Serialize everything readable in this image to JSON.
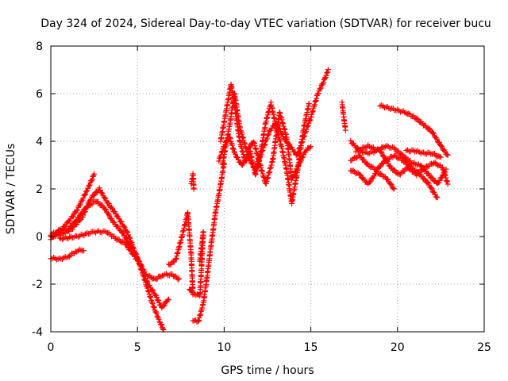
{
  "chart_data": {
    "type": "scatter",
    "title": "Day 324 of 2024, Sidereal Day-to-day VTEC variation (SDTVAR) for receiver bucu",
    "xlabel": "GPS time / hours",
    "ylabel": "SDTVAR / TECUs",
    "xlim": [
      0,
      25
    ],
    "ylim": [
      -4,
      8
    ],
    "xticks": [
      "0",
      "5",
      "10",
      "15",
      "20",
      "25"
    ],
    "yticks": [
      "-4",
      "-2",
      "0",
      "2",
      "4",
      "6",
      "8"
    ],
    "grid": true,
    "marker": "plus",
    "color": "#ff0000",
    "series": [
      {
        "points": [
          [
            0,
            -0.9
          ],
          [
            0.5,
            -0.95
          ],
          [
            1,
            -0.85
          ],
          [
            1.5,
            -0.6
          ],
          [
            1.9,
            -0.55
          ]
        ]
      },
      {
        "points": [
          [
            0,
            0.1
          ],
          [
            0.5,
            0.2
          ],
          [
            1,
            0.6
          ],
          [
            1.5,
            1.1
          ],
          [
            2,
            1.8
          ],
          [
            2.5,
            2.6
          ]
        ]
      },
      {
        "points": [
          [
            0,
            -0.1
          ],
          [
            0.5,
            0.3
          ],
          [
            1,
            0.3
          ],
          [
            1.5,
            0.7
          ],
          [
            2,
            1.2
          ],
          [
            2.6,
            1.5
          ],
          [
            3.1,
            1.2
          ],
          [
            3.6,
            0.6
          ],
          [
            4.1,
            0.2
          ],
          [
            4.6,
            -0.4
          ],
          [
            5.2,
            -1.2
          ],
          [
            5.6,
            -2.0
          ],
          [
            6.0,
            -2.4
          ],
          [
            6.4,
            -3.0
          ],
          [
            6.8,
            -2.6
          ]
        ]
      },
      {
        "points": [
          [
            0,
            0.0
          ],
          [
            0.6,
            0.1
          ],
          [
            1.2,
            0.3
          ],
          [
            1.8,
            0.8
          ],
          [
            2.3,
            1.6
          ],
          [
            2.8,
            2.0
          ],
          [
            3.2,
            1.5
          ],
          [
            3.8,
            0.9
          ],
          [
            4.4,
            0.2
          ],
          [
            5.0,
            -0.9
          ],
          [
            5.5,
            -2.0
          ],
          [
            5.9,
            -2.9
          ],
          [
            6.3,
            -3.6
          ],
          [
            6.5,
            -3.9
          ]
        ]
      },
      {
        "points": [
          [
            0.5,
            -0.1
          ],
          [
            1.5,
            0.0
          ],
          [
            2.5,
            0.2
          ],
          [
            3.2,
            0.2
          ],
          [
            3.8,
            -0.1
          ],
          [
            4.3,
            -0.3
          ],
          [
            5.0,
            -1.0
          ],
          [
            5.5,
            -1.6
          ],
          [
            6.0,
            -1.8
          ],
          [
            6.5,
            -1.6
          ],
          [
            7.0,
            -1.6
          ],
          [
            7.4,
            -1.8
          ]
        ]
      },
      {
        "points": [
          [
            6.8,
            -1.2
          ],
          [
            7.2,
            -1.0
          ],
          [
            7.6,
            0.1
          ],
          [
            7.9,
            1.0
          ],
          [
            8.1,
            -0.8
          ],
          [
            8.2,
            -2.4
          ],
          [
            8.0,
            -2.2
          ]
        ]
      },
      {
        "points": [
          [
            8.1,
            2.2
          ],
          [
            8.2,
            2.6
          ],
          [
            8.25,
            2.0
          ]
        ]
      },
      {
        "points": [
          [
            8.3,
            -2.4
          ],
          [
            8.6,
            -2.5
          ],
          [
            8.7,
            -1.2
          ],
          [
            8.8,
            0.2
          ],
          [
            8.6,
            -1.0
          ]
        ]
      },
      {
        "points": [
          [
            8.2,
            -3.5
          ],
          [
            8.5,
            -3.6
          ],
          [
            8.8,
            -2.8
          ],
          [
            9.0,
            -1.8
          ],
          [
            9.2,
            -0.6
          ],
          [
            9.5,
            1.0
          ],
          [
            9.8,
            2.2
          ],
          [
            10.0,
            3.1
          ]
        ]
      },
      {
        "points": [
          [
            9.7,
            3.2
          ],
          [
            10.0,
            3.8
          ],
          [
            10.3,
            4.2
          ],
          [
            10.6,
            3.5
          ],
          [
            11.0,
            3.0
          ],
          [
            11.4,
            3.3
          ],
          [
            11.8,
            2.8
          ],
          [
            12.2,
            3.6
          ],
          [
            12.6,
            4.4
          ],
          [
            13.0,
            4.8
          ],
          [
            13.4,
            4.2
          ],
          [
            13.8,
            3.8
          ],
          [
            14.2,
            3.4
          ],
          [
            14.6,
            4.2
          ],
          [
            15.0,
            5.0
          ],
          [
            15.4,
            6.0
          ],
          [
            15.8,
            6.6
          ],
          [
            16.0,
            7.0
          ]
        ]
      },
      {
        "points": [
          [
            9.8,
            4.0
          ],
          [
            10.1,
            5.2
          ],
          [
            10.4,
            6.4
          ],
          [
            10.6,
            5.5
          ],
          [
            10.9,
            4.0
          ],
          [
            11.2,
            3.2
          ],
          [
            11.5,
            3.6
          ],
          [
            11.8,
            2.6
          ],
          [
            12.1,
            3.5
          ],
          [
            12.4,
            4.8
          ],
          [
            12.7,
            5.6
          ],
          [
            13.0,
            4.6
          ],
          [
            13.3,
            3.8
          ],
          [
            13.6,
            2.8
          ],
          [
            13.9,
            1.4
          ],
          [
            14.2,
            2.6
          ],
          [
            14.6,
            4.6
          ],
          [
            14.9,
            5.6
          ]
        ]
      },
      {
        "points": [
          [
            9.9,
            3.0
          ],
          [
            10.3,
            4.6
          ],
          [
            10.6,
            6.0
          ],
          [
            10.9,
            4.6
          ],
          [
            11.3,
            3.6
          ],
          [
            11.7,
            4.0
          ],
          [
            12.0,
            3.2
          ],
          [
            12.4,
            2.2
          ],
          [
            12.8,
            3.2
          ],
          [
            13.2,
            5.2
          ],
          [
            13.6,
            4.2
          ],
          [
            13.9,
            2.4
          ],
          [
            14.3,
            3.0
          ],
          [
            14.7,
            3.6
          ],
          [
            15.0,
            3.8
          ]
        ]
      },
      {
        "points": [
          [
            16.8,
            5.6
          ],
          [
            16.9,
            5.0
          ],
          [
            17.0,
            4.5
          ]
        ]
      },
      {
        "points": [
          [
            17.3,
            4.0
          ],
          [
            17.8,
            3.6
          ],
          [
            18.3,
            3.5
          ],
          [
            18.8,
            3.6
          ],
          [
            19.3,
            3.8
          ],
          [
            19.8,
            3.7
          ],
          [
            20.3,
            3.4
          ],
          [
            20.8,
            3.1
          ],
          [
            21.3,
            3.0
          ],
          [
            21.8,
            2.6
          ],
          [
            22.3,
            2.2
          ],
          [
            22.8,
            2.8
          ]
        ]
      },
      {
        "points": [
          [
            17.3,
            3.2
          ],
          [
            17.8,
            3.4
          ],
          [
            18.3,
            3.0
          ],
          [
            18.8,
            2.8
          ],
          [
            19.3,
            3.2
          ],
          [
            19.8,
            3.4
          ],
          [
            20.3,
            3.2
          ],
          [
            20.8,
            2.9
          ],
          [
            21.3,
            2.6
          ],
          [
            21.8,
            2.2
          ],
          [
            22.3,
            1.6
          ]
        ]
      },
      {
        "points": [
          [
            17.3,
            2.8
          ],
          [
            17.8,
            2.6
          ],
          [
            18.3,
            2.2
          ],
          [
            18.8,
            2.7
          ],
          [
            19.3,
            2.5
          ],
          [
            19.8,
            2.0
          ]
        ]
      },
      {
        "points": [
          [
            17.6,
            3.6
          ],
          [
            18.3,
            3.8
          ],
          [
            19.0,
            3.6
          ],
          [
            19.6,
            2.9
          ],
          [
            20.1,
            2.6
          ],
          [
            20.6,
            2.9
          ],
          [
            21.1,
            2.6
          ],
          [
            21.6,
            2.9
          ],
          [
            22.1,
            3.1
          ],
          [
            22.6,
            2.9
          ],
          [
            22.9,
            2.2
          ]
        ]
      },
      {
        "points": [
          [
            19.0,
            5.5
          ],
          [
            19.5,
            5.4
          ],
          [
            20.0,
            5.3
          ],
          [
            20.5,
            5.2
          ],
          [
            21.0,
            5.0
          ],
          [
            21.5,
            4.7
          ],
          [
            22.0,
            4.4
          ],
          [
            22.5,
            3.8
          ],
          [
            22.9,
            3.4
          ]
        ]
      },
      {
        "points": [
          [
            20.5,
            3.6
          ],
          [
            21.0,
            3.6
          ],
          [
            21.5,
            3.5
          ],
          [
            22.0,
            3.5
          ],
          [
            22.5,
            3.3
          ]
        ]
      }
    ]
  }
}
